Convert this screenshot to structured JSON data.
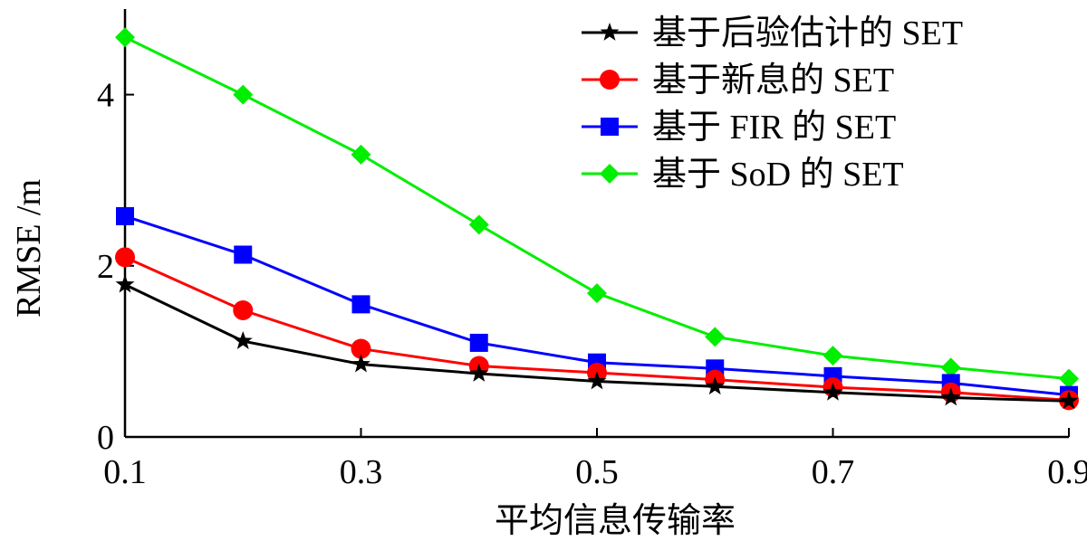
{
  "chart_data": {
    "type": "line",
    "title": "",
    "xlabel": "平均信息传输率",
    "ylabel": "RMSE /m",
    "x": [
      0.1,
      0.2,
      0.3,
      0.4,
      0.5,
      0.6,
      0.7,
      0.8,
      0.9
    ],
    "xlim": [
      0.1,
      0.9
    ],
    "ylim": [
      0,
      5
    ],
    "xticks": [
      "0.1",
      "0.3",
      "0.5",
      "0.7",
      "0.9"
    ],
    "xtick_values": [
      0.1,
      0.3,
      0.5,
      0.7,
      0.9
    ],
    "yticks": [
      "0",
      "2",
      "4"
    ],
    "ytick_values": [
      0,
      2,
      4
    ],
    "grid": false,
    "legend_position": "top-right",
    "series": [
      {
        "name": "基于后验估计的 SET",
        "color": "#000000",
        "marker": "star",
        "values": [
          1.78,
          1.12,
          0.85,
          0.74,
          0.65,
          0.59,
          0.52,
          0.46,
          0.42
        ]
      },
      {
        "name": "基于新息的 SET",
        "color": "#ff0000",
        "marker": "circle",
        "values": [
          2.1,
          1.48,
          1.03,
          0.83,
          0.75,
          0.67,
          0.58,
          0.52,
          0.43
        ]
      },
      {
        "name": "基于 FIR 的 SET",
        "color": "#0000ff",
        "marker": "square",
        "values": [
          2.58,
          2.13,
          1.55,
          1.1,
          0.87,
          0.8,
          0.71,
          0.63,
          0.49
        ]
      },
      {
        "name": "基于 SoD 的 SET",
        "color": "#00ee00",
        "marker": "diamond",
        "values": [
          4.67,
          4.0,
          3.3,
          2.48,
          1.68,
          1.17,
          0.95,
          0.81,
          0.68
        ]
      }
    ]
  }
}
